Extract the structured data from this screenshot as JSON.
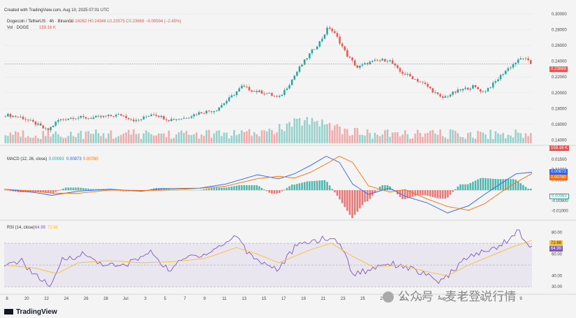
{
  "header": {
    "created": "Created with TradingView.com, Aug 10, 2025 07:01 UTC",
    "symbol": "Dogecoin / TetherUS · 4h · Binance",
    "ohlc": "O0.24262 H0.24346 L0.23575 C0.23669 −0.00594 (−2.45%)",
    "vol_label": "Vol · DOGE",
    "vol_value": "159.16 K"
  },
  "macd_legend": {
    "label": "MACD (12, 26, close)",
    "hist": "0.00093",
    "macd": "0.00873",
    "signal": "0.00780"
  },
  "rsi_legend": {
    "label": "RSI (14, close)",
    "rsi": "64.99",
    "ma": "72.68"
  },
  "tags": {
    "price": "0.23669",
    "vol": "159.16 K",
    "macd_line": "0.00873",
    "macd_signal": "0.00780",
    "macd_hist": "0.00093",
    "rsi_ma": "72.68",
    "rsi": "64.99"
  },
  "brand": "TradingView",
  "watermark": "公众号 · 麦老登说行情",
  "colors": {
    "up": "#26a69a",
    "down": "#ef5350",
    "macd": "#2962ff",
    "signal": "#ff6d00",
    "rsi": "#7e57c2",
    "rsi_ma": "#fbc02d"
  },
  "chart_data": {
    "type": "candlestick",
    "price_axis": {
      "ticks": [
        "0.30000",
        "0.28000",
        "0.26000",
        "0.24000",
        "0.22000",
        "0.20000",
        "0.18000",
        "0.16000",
        "0.14000"
      ],
      "ylim": [
        0.136,
        0.3
      ]
    },
    "macd_axis": {
      "ticks": [
        "0.01500",
        "0.01000",
        "0.00500",
        "-0.00500",
        "-0.01000"
      ],
      "ylim": [
        -0.0135,
        0.017
      ]
    },
    "rsi_axis": {
      "ticks": [
        "80.00",
        "60.00",
        "40.00",
        "30.00"
      ],
      "ylim": [
        25,
        88
      ],
      "bands": [
        30,
        70
      ],
      "band_middle": 50
    },
    "x_ticks": [
      "8",
      "20",
      "22",
      "24",
      "26",
      "28",
      "Jul",
      "3",
      "5",
      "7",
      "9",
      "11",
      "13",
      "15",
      "17",
      "19",
      "21",
      "23",
      "25",
      "27",
      "29",
      "31",
      "Aug",
      "3",
      "5",
      "7",
      "9"
    ],
    "price_path": [
      [
        0,
        0.172
      ],
      [
        0.03,
        0.169
      ],
      [
        0.06,
        0.16
      ],
      [
        0.08,
        0.152
      ],
      [
        0.1,
        0.165
      ],
      [
        0.13,
        0.169
      ],
      [
        0.16,
        0.168
      ],
      [
        0.19,
        0.17
      ],
      [
        0.22,
        0.172
      ],
      [
        0.25,
        0.164
      ],
      [
        0.28,
        0.174
      ],
      [
        0.31,
        0.166
      ],
      [
        0.34,
        0.168
      ],
      [
        0.37,
        0.175
      ],
      [
        0.4,
        0.178
      ],
      [
        0.43,
        0.195
      ],
      [
        0.45,
        0.208
      ],
      [
        0.47,
        0.203
      ],
      [
        0.5,
        0.199
      ],
      [
        0.52,
        0.193
      ],
      [
        0.54,
        0.211
      ],
      [
        0.56,
        0.232
      ],
      [
        0.58,
        0.25
      ],
      [
        0.6,
        0.266
      ],
      [
        0.615,
        0.284
      ],
      [
        0.63,
        0.272
      ],
      [
        0.65,
        0.248
      ],
      [
        0.67,
        0.232
      ],
      [
        0.69,
        0.238
      ],
      [
        0.71,
        0.241
      ],
      [
        0.73,
        0.242
      ],
      [
        0.75,
        0.227
      ],
      [
        0.77,
        0.221
      ],
      [
        0.8,
        0.21
      ],
      [
        0.83,
        0.193
      ],
      [
        0.86,
        0.202
      ],
      [
        0.89,
        0.208
      ],
      [
        0.91,
        0.201
      ],
      [
        0.93,
        0.212
      ],
      [
        0.95,
        0.227
      ],
      [
        0.97,
        0.238
      ],
      [
        0.985,
        0.245
      ],
      [
        1,
        0.237
      ]
    ],
    "macd_path": [
      [
        0,
        0.0005
      ],
      [
        0.06,
        -0.0012
      ],
      [
        0.09,
        -0.0025
      ],
      [
        0.14,
        -0.0005
      ],
      [
        0.2,
        0.0005
      ],
      [
        0.26,
        -0.0005
      ],
      [
        0.3,
        0.0008
      ],
      [
        0.37,
        0.001
      ],
      [
        0.42,
        0.003
      ],
      [
        0.48,
        0.0075
      ],
      [
        0.52,
        0.0055
      ],
      [
        0.55,
        0.008
      ],
      [
        0.58,
        0.012
      ],
      [
        0.61,
        0.0165
      ],
      [
        0.635,
        0.0135
      ],
      [
        0.66,
        0.003
      ],
      [
        0.69,
        -0.002
      ],
      [
        0.73,
        0.001
      ],
      [
        0.76,
        -0.003
      ],
      [
        0.8,
        -0.006
      ],
      [
        0.84,
        -0.011
      ],
      [
        0.88,
        -0.0075
      ],
      [
        0.91,
        -0.002
      ],
      [
        0.94,
        0.003
      ],
      [
        0.97,
        0.008
      ],
      [
        1,
        0.0087
      ]
    ],
    "rsi_path": [
      [
        0,
        47
      ],
      [
        0.03,
        55
      ],
      [
        0.06,
        40
      ],
      [
        0.09,
        30
      ],
      [
        0.11,
        55
      ],
      [
        0.15,
        60
      ],
      [
        0.18,
        52
      ],
      [
        0.22,
        48
      ],
      [
        0.25,
        55
      ],
      [
        0.28,
        62
      ],
      [
        0.31,
        45
      ],
      [
        0.35,
        58
      ],
      [
        0.38,
        60
      ],
      [
        0.42,
        70
      ],
      [
        0.44,
        78
      ],
      [
        0.46,
        62
      ],
      [
        0.49,
        52
      ],
      [
        0.52,
        46
      ],
      [
        0.55,
        66
      ],
      [
        0.58,
        72
      ],
      [
        0.61,
        74
      ],
      [
        0.635,
        72
      ],
      [
        0.66,
        42
      ],
      [
        0.69,
        45
      ],
      [
        0.72,
        52
      ],
      [
        0.75,
        50
      ],
      [
        0.78,
        45
      ],
      [
        0.8,
        40
      ],
      [
        0.83,
        34
      ],
      [
        0.86,
        50
      ],
      [
        0.89,
        60
      ],
      [
        0.92,
        63
      ],
      [
        0.95,
        72
      ],
      [
        0.975,
        81
      ],
      [
        1,
        65
      ]
    ],
    "rsi_ma_path": [
      [
        0,
        50
      ],
      [
        0.06,
        47
      ],
      [
        0.1,
        42
      ],
      [
        0.14,
        52
      ],
      [
        0.2,
        54
      ],
      [
        0.26,
        52
      ],
      [
        0.32,
        53
      ],
      [
        0.38,
        56
      ],
      [
        0.44,
        66
      ],
      [
        0.48,
        60
      ],
      [
        0.52,
        52
      ],
      [
        0.58,
        64
      ],
      [
        0.62,
        70
      ],
      [
        0.66,
        58
      ],
      [
        0.7,
        48
      ],
      [
        0.75,
        50
      ],
      [
        0.8,
        44
      ],
      [
        0.84,
        40
      ],
      [
        0.88,
        50
      ],
      [
        0.92,
        58
      ],
      [
        0.96,
        66
      ],
      [
        1,
        72.7
      ]
    ]
  }
}
